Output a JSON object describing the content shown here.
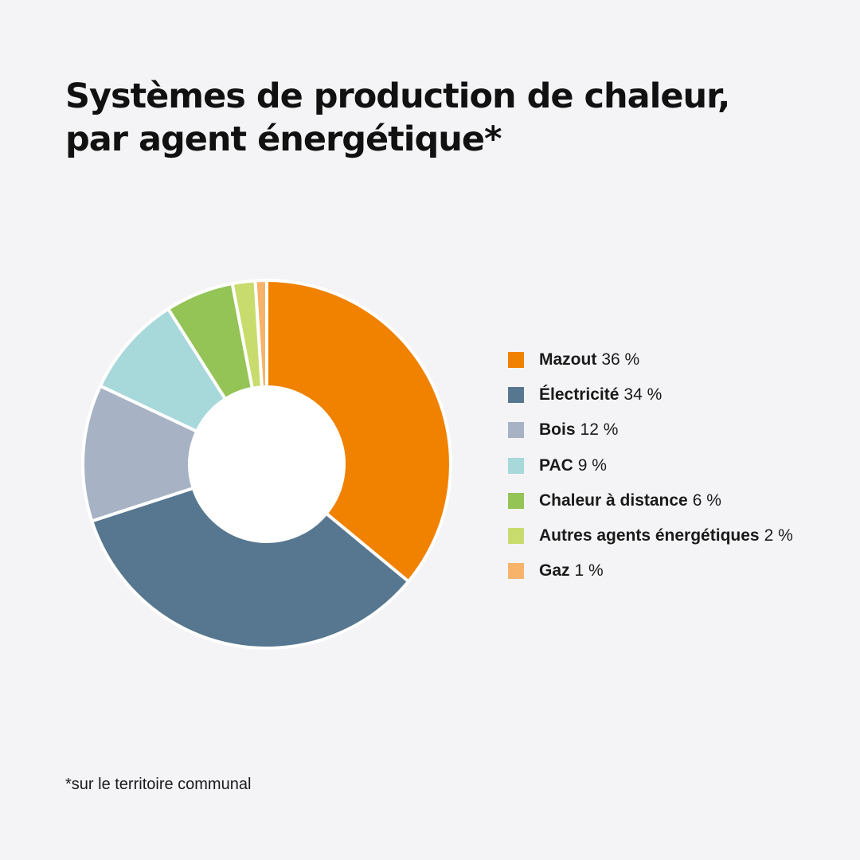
{
  "title_line1": "Systèmes de production de chaleur,",
  "title_line2": "par agent énergétique*",
  "footnote": "*sur le territoire communal",
  "chart_data": {
    "type": "pie",
    "variant": "donut",
    "title": "Systèmes de production de chaleur, par agent énergétique*",
    "legend_position": "right",
    "slices": [
      {
        "label": "Mazout",
        "value": 36,
        "value_label": "36 %",
        "color": "#f08200"
      },
      {
        "label": "Électricité",
        "value": 34,
        "value_label": "34 %",
        "color": "#56778f"
      },
      {
        "label": "Bois",
        "value": 12,
        "value_label": "12 %",
        "color": "#a7b3c4"
      },
      {
        "label": "PAC",
        "value": 9,
        "value_label": "9 %",
        "color": "#a7d8da"
      },
      {
        "label": "Chaleur à distance",
        "value": 6,
        "value_label": "6 %",
        "color": "#94c356"
      },
      {
        "label": "Autres agents énergétiques",
        "value": 2,
        "value_label": "2 %",
        "color": "#c8dc6e"
      },
      {
        "label": "Gaz",
        "value": 1,
        "value_label": "1 %",
        "color": "#f8b36b"
      }
    ]
  }
}
